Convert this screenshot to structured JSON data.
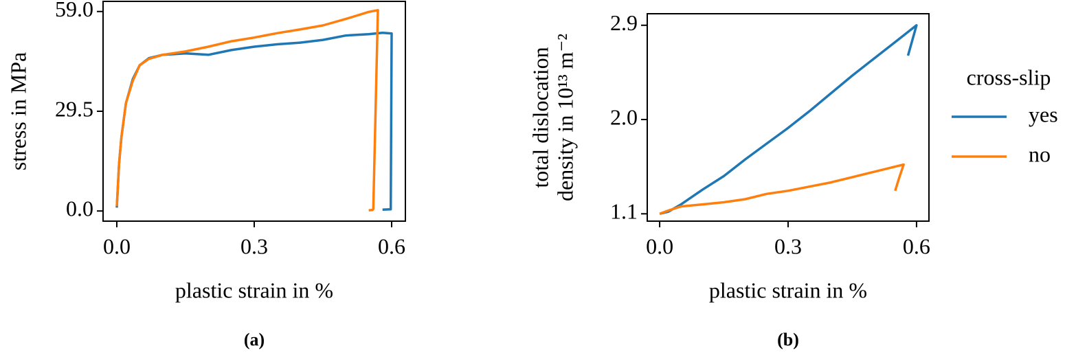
{
  "chart_data": [
    {
      "type": "line",
      "caption": "(a)",
      "xlabel": "plastic strain in %",
      "ylabel": [
        "stress in MPa"
      ],
      "xlim": [
        -0.03,
        0.63
      ],
      "xticks": [
        {
          "value": 0,
          "label": "0.0"
        },
        0.3,
        0.6
      ],
      "ylim": [
        -3.0,
        62.0
      ],
      "yticks": [
        {
          "value": 0,
          "label": "0.0"
        },
        29.5,
        {
          "value": 59,
          "label": "59.0"
        }
      ],
      "legend": false,
      "series": [
        {
          "name": "yes",
          "color": "#1f77b4",
          "x": [
            0,
            0.005,
            0.01,
            0.02,
            0.035,
            0.05,
            0.07,
            0.1,
            0.15,
            0.2,
            0.25,
            0.3,
            0.35,
            0.4,
            0.45,
            0.5,
            0.55,
            0.58,
            0.6,
            0.598,
            0.58
          ],
          "values": [
            1.0,
            14.0,
            21.8,
            31.9,
            39.0,
            43.1,
            45.2,
            46.2,
            46.6,
            46.2,
            47.6,
            48.6,
            49.3,
            49.8,
            50.6,
            51.9,
            52.3,
            52.7,
            52.5,
            0.5,
            0.4
          ]
        },
        {
          "name": "no",
          "color": "#ff7f0e",
          "x": [
            0,
            0.005,
            0.01,
            0.02,
            0.035,
            0.05,
            0.07,
            0.1,
            0.15,
            0.2,
            0.25,
            0.3,
            0.35,
            0.4,
            0.45,
            0.5,
            0.55,
            0.57,
            0.56,
            0.558,
            0.55
          ],
          "values": [
            1.4,
            14.0,
            21.8,
            31.9,
            38.5,
            43.1,
            45.0,
            46.2,
            47.2,
            48.6,
            50.2,
            51.3,
            52.6,
            53.7,
            54.9,
            56.8,
            58.9,
            59.4,
            0.6,
            0.3,
            0.2
          ]
        }
      ]
    },
    {
      "type": "line",
      "caption": "(b)",
      "xlabel": "plastic strain in %",
      "ylabel": [
        "total dislocation",
        "density in 10¹³ m⁻²"
      ],
      "xlim": [
        -0.029,
        0.629
      ],
      "xticks": [
        {
          "value": 0,
          "label": "0.0"
        },
        0.3,
        0.6
      ],
      "ylim": [
        1.03,
        3.01
      ],
      "yticks": [
        1.1,
        {
          "value": 2,
          "label": "2.0"
        },
        2.9
      ],
      "legend": true,
      "legend_title": "cross-slip",
      "series": [
        {
          "name": "yes",
          "color": "#1f77b4",
          "x": [
            0,
            0.02,
            0.05,
            0.1,
            0.15,
            0.2,
            0.25,
            0.3,
            0.35,
            0.4,
            0.45,
            0.5,
            0.55,
            0.6,
            0.58
          ],
          "values": [
            1.1,
            1.12,
            1.19,
            1.33,
            1.46,
            1.62,
            1.77,
            1.92,
            2.08,
            2.25,
            2.42,
            2.58,
            2.74,
            2.9,
            2.61
          ]
        },
        {
          "name": "no",
          "color": "#ff7f0e",
          "x": [
            0,
            0.02,
            0.05,
            0.1,
            0.15,
            0.2,
            0.25,
            0.3,
            0.35,
            0.4,
            0.45,
            0.5,
            0.57,
            0.56,
            0.55
          ],
          "values": [
            1.1,
            1.13,
            1.17,
            1.19,
            1.21,
            1.24,
            1.29,
            1.32,
            1.36,
            1.4,
            1.45,
            1.5,
            1.57,
            1.45,
            1.32
          ]
        }
      ]
    }
  ]
}
